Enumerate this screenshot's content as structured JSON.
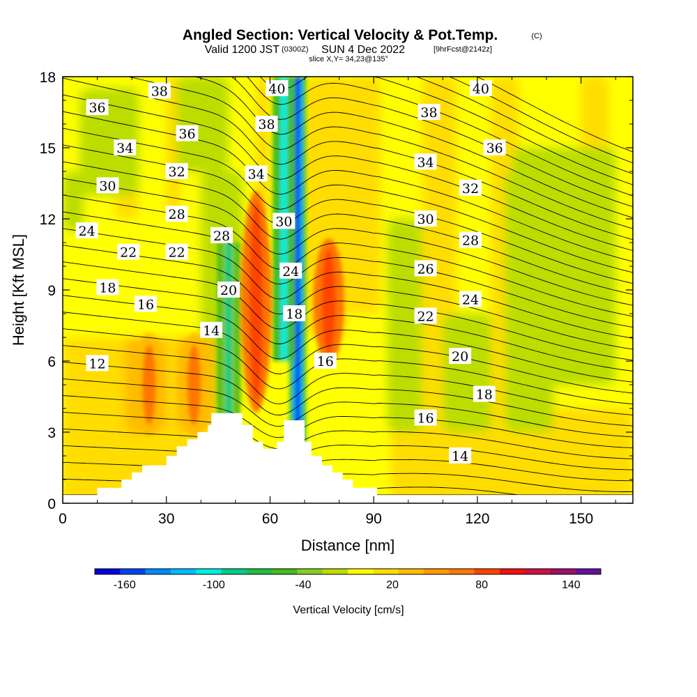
{
  "header": {
    "title": "Angled Section: Vertical Velocity & Pot.Temp.",
    "copyright": "(C)",
    "valid_prefix": "Valid 1200 JST",
    "utc": "(0300Z)",
    "date": "SUN 4 Dec 2022",
    "forecast": "[9hrFcst@2142z]",
    "slice": "slice X,Y= 34,23@135°"
  },
  "chart_data": {
    "type": "contour",
    "title": "Angled Section: Vertical Velocity & Pot.Temp.",
    "xlabel": "Distance [nm]",
    "ylabel": "Height [Kft MSL]",
    "xlim": [
      0,
      165
    ],
    "ylim": [
      0,
      18
    ],
    "x_ticks": [
      0,
      30,
      60,
      90,
      120,
      150
    ],
    "y_ticks": [
      0,
      3,
      6,
      9,
      12,
      15,
      18
    ],
    "grid": false,
    "colorbar": {
      "label": "Vertical Velocity [cm/s]",
      "tick_labels": [
        "-160",
        "-100",
        "-40",
        "20",
        "80",
        "140"
      ],
      "tick_values": [
        -160,
        -100,
        -40,
        20,
        80,
        140
      ],
      "range": [
        -180,
        160
      ],
      "colors": [
        "#0000dd",
        "#0044ee",
        "#0088ff",
        "#00bbff",
        "#00eedd",
        "#00cc88",
        "#22bb44",
        "#44bb22",
        "#88cc22",
        "#bbdd00",
        "#ffff00",
        "#ffdd00",
        "#ffbb00",
        "#ff9900",
        "#ff7700",
        "#ff4400",
        "#ee1111",
        "#cc1144",
        "#991166",
        "#661199"
      ]
    },
    "shading_features": [
      {
        "kind": "downdraft",
        "x": 68,
        "y": [
          0,
          18
        ],
        "value": -160
      },
      {
        "kind": "downdraft",
        "x": 64,
        "y": [
          6,
          18
        ],
        "value": -100
      },
      {
        "kind": "downdraft",
        "x": 48,
        "y": [
          3,
          11
        ],
        "value": -80
      },
      {
        "kind": "updraft",
        "x": 56,
        "y": [
          4,
          13
        ],
        "value": 60
      },
      {
        "kind": "updraft",
        "x": 77,
        "y": [
          6,
          11
        ],
        "value": 60
      },
      {
        "kind": "updraft",
        "x": 25,
        "y": [
          3,
          7
        ],
        "value": 40
      },
      {
        "kind": "updraft",
        "x": 38,
        "y": [
          3,
          7
        ],
        "value": 40
      }
    ],
    "theta_contours": [
      {
        "value": 12,
        "label_x": 10,
        "label_y": 5.9
      },
      {
        "value": 14,
        "label_x": 43,
        "label_y": 7.3
      },
      {
        "value": 14,
        "label_x": 115,
        "label_y": 2
      },
      {
        "value": 16,
        "label_x": 24,
        "label_y": 8.4
      },
      {
        "value": 16,
        "label_x": 76,
        "label_y": 6
      },
      {
        "value": 16,
        "label_x": 105,
        "label_y": 3.6
      },
      {
        "value": 18,
        "label_x": 13,
        "label_y": 9.1
      },
      {
        "value": 18,
        "label_x": 67,
        "label_y": 8
      },
      {
        "value": 18,
        "label_x": 122,
        "label_y": 4.6
      },
      {
        "value": 20,
        "label_x": 48,
        "label_y": 9
      },
      {
        "value": 20,
        "label_x": 115,
        "label_y": 6.2
      },
      {
        "value": 22,
        "label_x": 19,
        "label_y": 10.6
      },
      {
        "value": 22,
        "label_x": 33,
        "label_y": 10.6
      },
      {
        "value": 22,
        "label_x": 105,
        "label_y": 7.9
      },
      {
        "value": 24,
        "label_x": 7,
        "label_y": 11.5
      },
      {
        "value": 24,
        "label_x": 66,
        "label_y": 9.8
      },
      {
        "value": 24,
        "label_x": 118,
        "label_y": 8.6
      },
      {
        "value": 26,
        "label_x": 105,
        "label_y": 9.9
      },
      {
        "value": 28,
        "label_x": 33,
        "label_y": 12.2
      },
      {
        "value": 28,
        "label_x": 46,
        "label_y": 11.3
      },
      {
        "value": 28,
        "label_x": 118,
        "label_y": 11.1
      },
      {
        "value": 30,
        "label_x": 13,
        "label_y": 13.4
      },
      {
        "value": 30,
        "label_x": 64,
        "label_y": 11.9
      },
      {
        "value": 30,
        "label_x": 105,
        "label_y": 12
      },
      {
        "value": 32,
        "label_x": 33,
        "label_y": 14
      },
      {
        "value": 32,
        "label_x": 118,
        "label_y": 13.3
      },
      {
        "value": 34,
        "label_x": 18,
        "label_y": 15
      },
      {
        "value": 34,
        "label_x": 56,
        "label_y": 13.9
      },
      {
        "value": 34,
        "label_x": 105,
        "label_y": 14.4
      },
      {
        "value": 36,
        "label_x": 10,
        "label_y": 16.7
      },
      {
        "value": 36,
        "label_x": 36,
        "label_y": 15.6
      },
      {
        "value": 36,
        "label_x": 125,
        "label_y": 15
      },
      {
        "value": 38,
        "label_x": 28,
        "label_y": 17.4
      },
      {
        "value": 38,
        "label_x": 59,
        "label_y": 16
      },
      {
        "value": 38,
        "label_x": 106,
        "label_y": 16.5
      },
      {
        "value": 40,
        "label_x": 62,
        "label_y": 17.5
      },
      {
        "value": 40,
        "label_x": 121,
        "label_y": 17.5
      }
    ],
    "terrain": [
      [
        0,
        0.35
      ],
      [
        10,
        0.35
      ],
      [
        10,
        0.65
      ],
      [
        17,
        0.65
      ],
      [
        17,
        1
      ],
      [
        20,
        1
      ],
      [
        20,
        1.3
      ],
      [
        23,
        1.3
      ],
      [
        23,
        1.6
      ],
      [
        30,
        1.6
      ],
      [
        30,
        2
      ],
      [
        33,
        2
      ],
      [
        33,
        2.4
      ],
      [
        36,
        2.4
      ],
      [
        36,
        2.7
      ],
      [
        39,
        2.7
      ],
      [
        39,
        3
      ],
      [
        42,
        3
      ],
      [
        42,
        3.3
      ],
      [
        43,
        3.3
      ],
      [
        43,
        3.8
      ],
      [
        52,
        3.8
      ],
      [
        52,
        3.3
      ],
      [
        55,
        3.3
      ],
      [
        55,
        2.6
      ],
      [
        58,
        2.6
      ],
      [
        58,
        2.3
      ],
      [
        62,
        2.3
      ],
      [
        62,
        2.6
      ],
      [
        64,
        2.6
      ],
      [
        64,
        3.5
      ],
      [
        70,
        3.5
      ],
      [
        70,
        2.6
      ],
      [
        72,
        2.6
      ],
      [
        72,
        2
      ],
      [
        75,
        2
      ],
      [
        75,
        1.6
      ],
      [
        78,
        1.6
      ],
      [
        78,
        1.3
      ],
      [
        81,
        1.3
      ],
      [
        81,
        1
      ],
      [
        84,
        1
      ],
      [
        84,
        0.65
      ],
      [
        91,
        0.65
      ],
      [
        91,
        0.35
      ],
      [
        165,
        0.35
      ]
    ]
  }
}
